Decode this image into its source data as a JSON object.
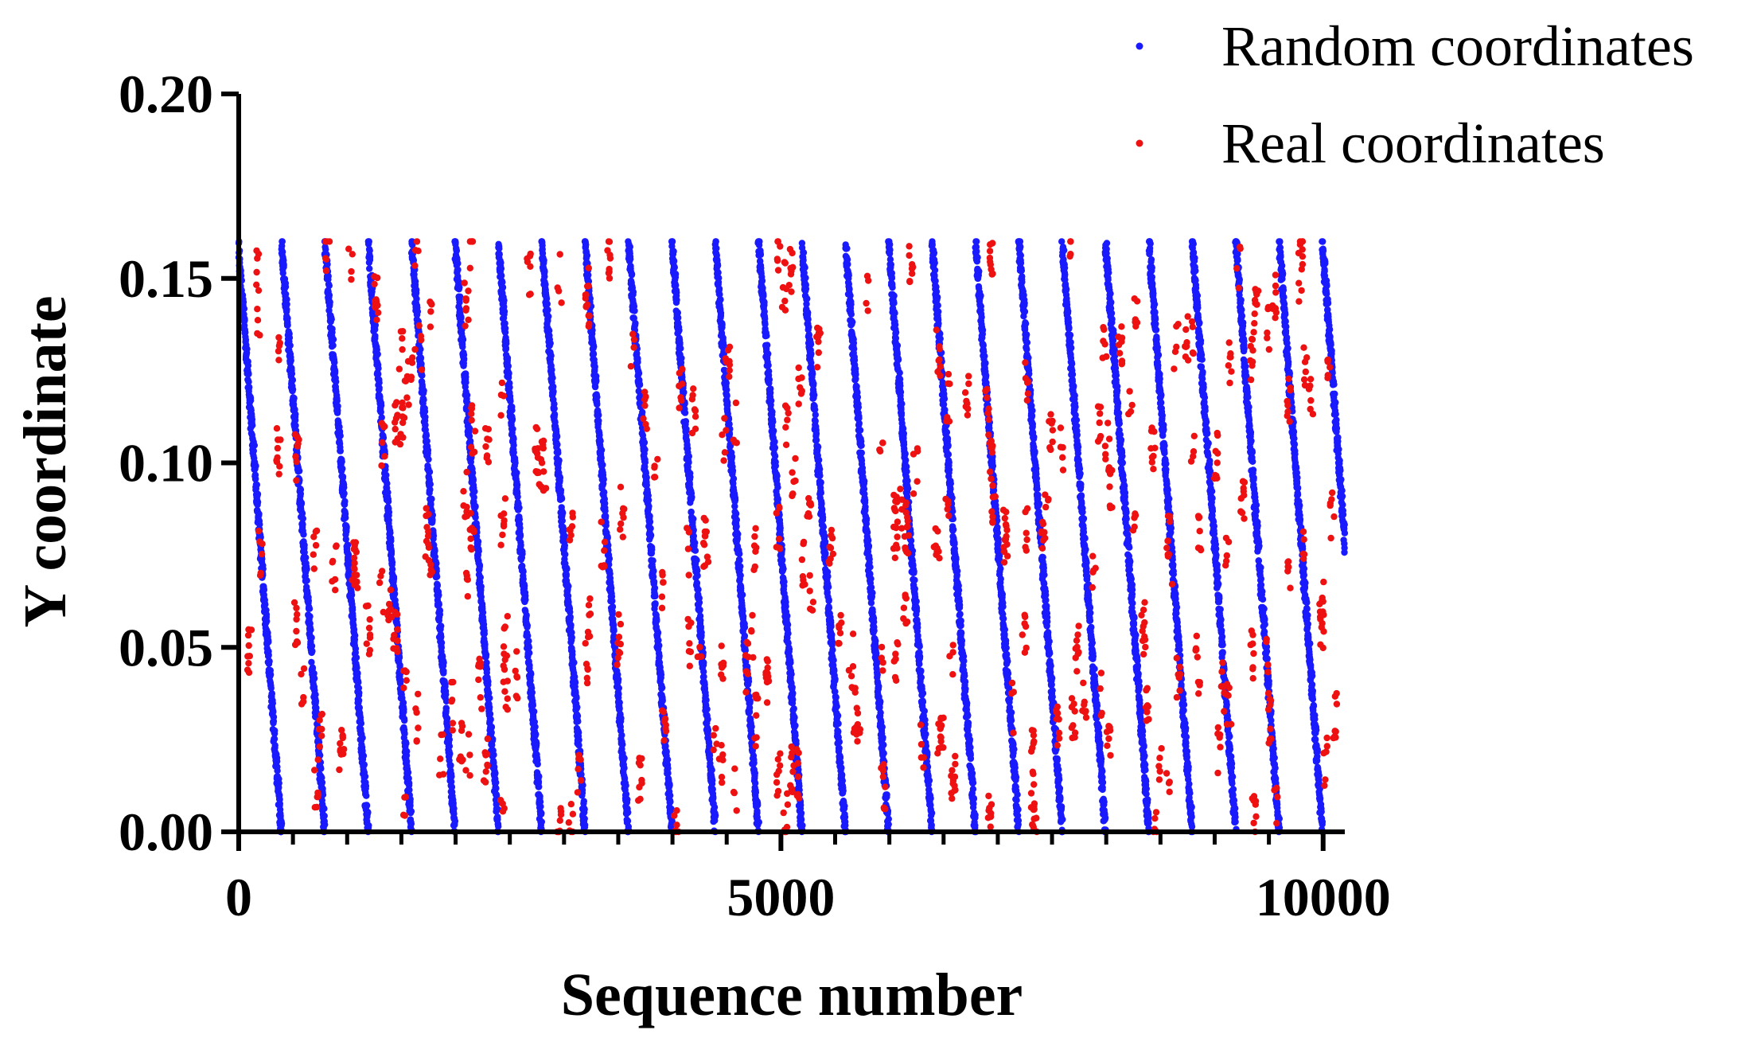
{
  "chart_data": {
    "type": "scatter",
    "xlabel": "Sequence number",
    "ylabel": "Y coordinate",
    "xlim": [
      0,
      10200
    ],
    "ylim": [
      0,
      0.2
    ],
    "x_ticks": [
      0,
      5000,
      10000
    ],
    "x_tick_labels": [
      "0",
      "5000",
      "10000"
    ],
    "x_minor_tick_step": 500,
    "y_ticks": [
      0,
      0.05,
      0.1,
      0.15,
      0.2
    ],
    "y_tick_labels": [
      "0.00",
      "0.05",
      "0.10",
      "0.15",
      "0.20"
    ],
    "grid": false,
    "legend_position": "top-right",
    "series": [
      {
        "name": "Random coordinates",
        "color": "#1a1aff",
        "point_count": 10200,
        "y_range": [
          0,
          0.16
        ],
        "pattern": "dense diagonal bands descending from y=0.16 to y=0 repeating every ~400 sequence numbers"
      },
      {
        "name": "Real coordinates",
        "color": "#ee1111",
        "point_count": 1500,
        "y_range": [
          0,
          0.16
        ],
        "pattern": "sparse vertical clusters scattered across the full sequence range"
      }
    ]
  }
}
